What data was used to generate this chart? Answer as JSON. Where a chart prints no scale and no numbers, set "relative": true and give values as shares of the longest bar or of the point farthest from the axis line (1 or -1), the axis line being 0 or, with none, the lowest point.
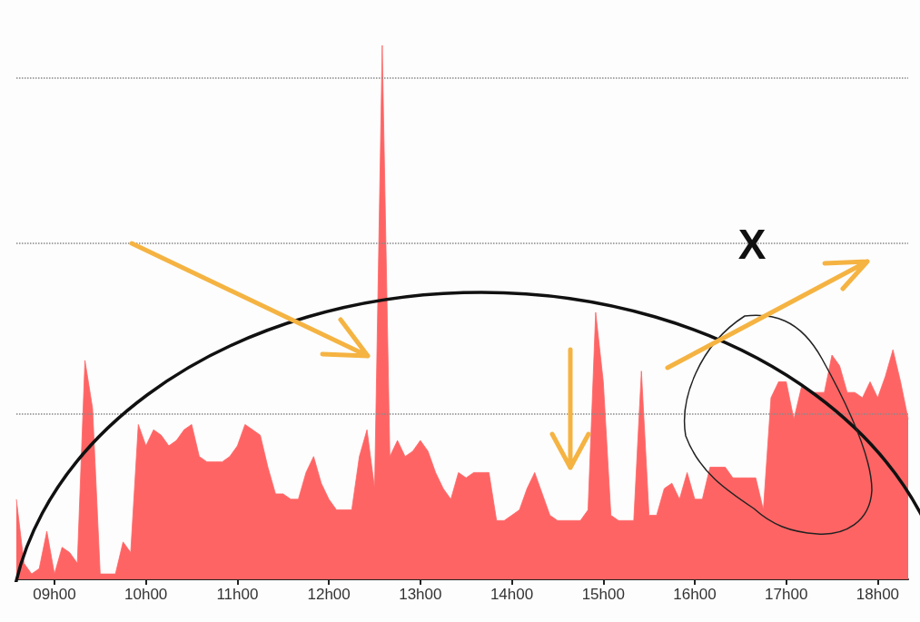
{
  "chart_data": {
    "type": "area",
    "relative": true,
    "annotations": [
      "X"
    ],
    "categories": [
      null,
      null,
      null,
      null,
      null,
      "09h00",
      null,
      null,
      null,
      null,
      null,
      null,
      null,
      null,
      null,
      null,
      null,
      "10h00",
      null,
      null,
      null,
      null,
      null,
      null,
      null,
      null,
      null,
      null,
      null,
      "11h00",
      null,
      null,
      null,
      null,
      null,
      null,
      null,
      null,
      null,
      null,
      null,
      "12h00",
      null,
      null,
      null,
      null,
      null,
      null,
      null,
      null,
      null,
      null,
      null,
      "13h00",
      null,
      null,
      null,
      null,
      null,
      null,
      null,
      null,
      null,
      null,
      null,
      "14h00",
      null,
      null,
      null,
      null,
      null,
      null,
      null,
      null,
      null,
      null,
      null,
      "15h00",
      null,
      null,
      null,
      null,
      null,
      null,
      null,
      null,
      null,
      null,
      null,
      "16h00",
      null,
      null,
      null,
      null,
      null,
      null,
      null,
      null,
      null,
      null,
      null,
      "17h00",
      null,
      null,
      null,
      null,
      null,
      null,
      null,
      null,
      null,
      null,
      null,
      "18h00",
      null,
      null,
      null,
      null
    ],
    "series": [
      {
        "color": "#ff6464",
        "values": [
          0.15,
          0.03,
          0.01,
          0.02,
          0.09,
          0.01,
          0.06,
          0.05,
          0.03,
          0.41,
          0.32,
          0.01,
          0.01,
          0.01,
          0.07,
          0.05,
          0.29,
          0.25,
          0.28,
          0.27,
          0.25,
          0.26,
          0.28,
          0.29,
          0.23,
          0.22,
          0.22,
          0.22,
          0.23,
          0.25,
          0.29,
          0.28,
          0.27,
          0.21,
          0.16,
          0.16,
          0.15,
          0.15,
          0.2,
          0.23,
          0.18,
          0.15,
          0.13,
          0.13,
          0.13,
          0.23,
          0.28,
          0.17,
          1,
          0.23,
          0.26,
          0.23,
          0.24,
          0.26,
          0.24,
          0.2,
          0.17,
          0.15,
          0.2,
          0.19,
          0.2,
          0.2,
          0.2,
          0.11,
          0.11,
          0.12,
          0.13,
          0.17,
          0.2,
          0.16,
          0.12,
          0.11,
          0.11,
          0.11,
          0.11,
          0.13,
          0.5,
          0.37,
          0.12,
          0.11,
          0.11,
          0.11,
          0.39,
          0.12,
          0.12,
          0.17,
          0.18,
          0.15,
          0.2,
          0.15,
          0.15,
          0.21,
          0.21,
          0.21,
          0.19,
          0.19,
          0.19,
          0.19,
          0.13,
          0.34,
          0.37,
          0.37,
          0.3,
          0.36,
          0.35,
          0.35,
          0.35,
          0.42,
          0.4,
          0.35,
          0.35,
          0.34,
          0.37,
          0.34,
          0.38,
          0.43,
          0.37,
          0.3
        ]
      }
    ],
    "ref_lines": [
      {
        "axis": "y",
        "value": 0.31,
        "color": "#888888",
        "line_style": "dotted"
      },
      {
        "axis": "y",
        "value": 0.63,
        "color": "#888888",
        "line_style": "dotted"
      },
      {
        "axis": "y",
        "value": 0.94,
        "color": "#888888",
        "line_style": "dotted"
      }
    ]
  }
}
